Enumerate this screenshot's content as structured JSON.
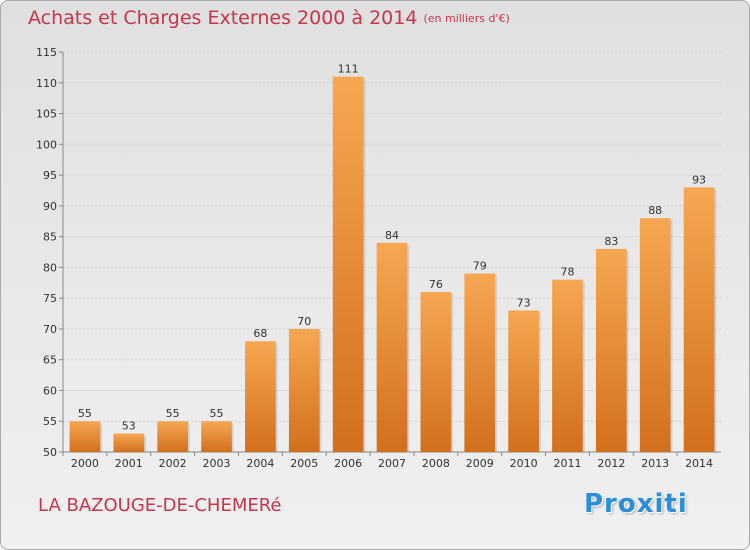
{
  "title": "Achats et Charges Externes 2000 à 2014",
  "subtitle": "(en milliers d'€)",
  "commune": "LA BAZOUGE-DE-CHEMERé",
  "brand": "Proxiti",
  "colors": {
    "bar_top": "#f6a752",
    "bar_bottom": "#d26f1c",
    "title": "#c8354b"
  },
  "chart_data": {
    "type": "bar",
    "title": "Achats et Charges Externes 2000 à 2014",
    "subtitle": "(en milliers d'€)",
    "categories": [
      "2000",
      "2001",
      "2002",
      "2003",
      "2004",
      "2005",
      "2006",
      "2007",
      "2008",
      "2009",
      "2010",
      "2011",
      "2012",
      "2013",
      "2014"
    ],
    "values": [
      55,
      53,
      55,
      55,
      68,
      70,
      111,
      84,
      76,
      79,
      73,
      78,
      83,
      88,
      93
    ],
    "ylim": [
      50,
      115
    ],
    "yticks": [
      50,
      55,
      60,
      65,
      70,
      75,
      80,
      85,
      90,
      95,
      100,
      105,
      110,
      115
    ],
    "grid": true,
    "data_labels": true
  }
}
